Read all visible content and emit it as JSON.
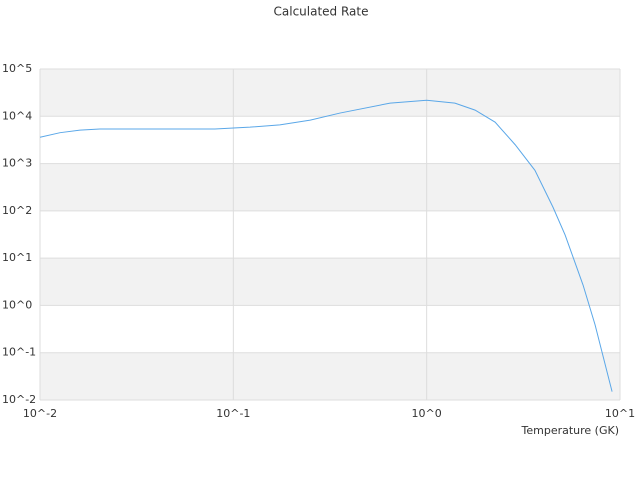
{
  "chart_data": {
    "type": "line",
    "title": "Calculated Rate",
    "x_label": "Temperature (GK)",
    "xscale": "log",
    "yscale": "log",
    "grid": true,
    "xlim": [
      0.01,
      10
    ],
    "ylim": [
      0.01,
      100000
    ],
    "xticks": [
      {
        "value": 0.01,
        "label": "10^-2"
      },
      {
        "value": 0.1,
        "label": "10^-1"
      },
      {
        "value": 1,
        "label": "10^0"
      },
      {
        "value": 10,
        "label": "10^1"
      }
    ],
    "yticks": [
      {
        "value": 0.01,
        "label": "10^-2"
      },
      {
        "value": 0.1,
        "label": "10^-1"
      },
      {
        "value": 1,
        "label": "10^0"
      },
      {
        "value": 10,
        "label": "10^1"
      },
      {
        "value": 100,
        "label": "10^2"
      },
      {
        "value": 1000,
        "label": "10^3"
      },
      {
        "value": 10000,
        "label": "10^4"
      },
      {
        "value": 100000,
        "label": "10^5"
      }
    ],
    "x": [
      0.01,
      0.0127,
      0.0161,
      0.0204,
      0.026,
      0.0329,
      0.0803,
      0.122,
      0.174,
      0.25,
      0.356,
      0.647,
      1.0,
      1.4,
      1.78,
      2.26,
      2.87,
      3.63,
      4.5,
      5.2,
      6.44,
      7.43,
      9.1
    ],
    "series": [
      {
        "color": "#5aa7e8",
        "values": [
          3600,
          4500,
          5100,
          5400,
          5400,
          5400,
          5400,
          5900,
          6600,
          8300,
          11700,
          19000,
          21800,
          19000,
          13500,
          7500,
          2500,
          720,
          120,
          31,
          2.7,
          0.39,
          0.015
        ]
      }
    ]
  }
}
